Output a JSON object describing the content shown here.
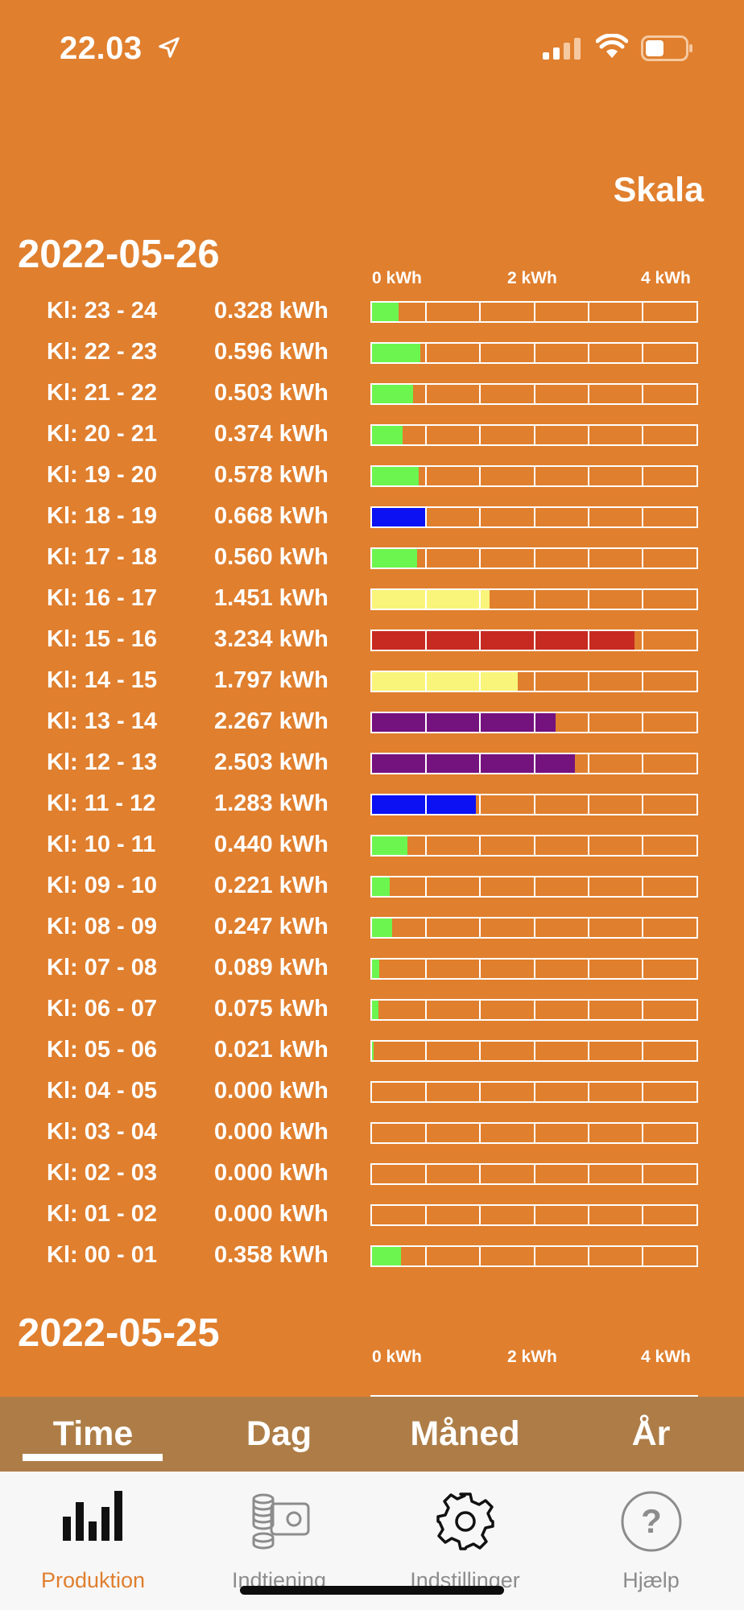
{
  "status": {
    "time": "22.03"
  },
  "header": {
    "scale_label": "Skala"
  },
  "days": [
    {
      "date": "2022-05-26",
      "axis": [
        "0 kWh",
        "2 kWh",
        "4 kWh"
      ],
      "rows": [
        {
          "label": "Kl: 23 - 24",
          "value": "0.328 kWh",
          "kwh": 0.328,
          "color": "#6cf54f"
        },
        {
          "label": "Kl: 22 - 23",
          "value": "0.596 kWh",
          "kwh": 0.596,
          "color": "#6cf54f"
        },
        {
          "label": "Kl: 21 - 22",
          "value": "0.503 kWh",
          "kwh": 0.503,
          "color": "#6cf54f"
        },
        {
          "label": "Kl: 20 - 21",
          "value": "0.374 kWh",
          "kwh": 0.374,
          "color": "#6cf54f"
        },
        {
          "label": "Kl: 19 - 20",
          "value": "0.578 kWh",
          "kwh": 0.578,
          "color": "#6cf54f"
        },
        {
          "label": "Kl: 18 - 19",
          "value": "0.668 kWh",
          "kwh": 0.668,
          "color": "#0b11f2"
        },
        {
          "label": "Kl: 17 - 18",
          "value": "0.560 kWh",
          "kwh": 0.56,
          "color": "#6cf54f"
        },
        {
          "label": "Kl: 16 - 17",
          "value": "1.451 kWh",
          "kwh": 1.451,
          "color": "#f8f57a"
        },
        {
          "label": "Kl: 15 - 16",
          "value": "3.234 kWh",
          "kwh": 3.234,
          "color": "#c72a21"
        },
        {
          "label": "Kl: 14 - 15",
          "value": "1.797 kWh",
          "kwh": 1.797,
          "color": "#f8f57a"
        },
        {
          "label": "Kl: 13 - 14",
          "value": "2.267 kWh",
          "kwh": 2.267,
          "color": "#74127e"
        },
        {
          "label": "Kl: 12 - 13",
          "value": "2.503 kWh",
          "kwh": 2.503,
          "color": "#74127e"
        },
        {
          "label": "Kl: 11 - 12",
          "value": "1.283 kWh",
          "kwh": 1.283,
          "color": "#0b11f2"
        },
        {
          "label": "Kl: 10 - 11",
          "value": "0.440 kWh",
          "kwh": 0.44,
          "color": "#6cf54f"
        },
        {
          "label": "Kl: 09 - 10",
          "value": "0.221 kWh",
          "kwh": 0.221,
          "color": "#6cf54f"
        },
        {
          "label": "Kl: 08 - 09",
          "value": "0.247 kWh",
          "kwh": 0.247,
          "color": "#6cf54f"
        },
        {
          "label": "Kl: 07 - 08",
          "value": "0.089 kWh",
          "kwh": 0.089,
          "color": "#6cf54f"
        },
        {
          "label": "Kl: 06 - 07",
          "value": "0.075 kWh",
          "kwh": 0.075,
          "color": "#6cf54f"
        },
        {
          "label": "Kl: 05 - 06",
          "value": "0.021 kWh",
          "kwh": 0.021,
          "color": "#6cf54f"
        },
        {
          "label": "Kl: 04 - 05",
          "value": "0.000 kWh",
          "kwh": 0.0,
          "color": "#6cf54f"
        },
        {
          "label": "Kl: 03 - 04",
          "value": "0.000 kWh",
          "kwh": 0.0,
          "color": "#6cf54f"
        },
        {
          "label": "Kl: 02 - 03",
          "value": "0.000 kWh",
          "kwh": 0.0,
          "color": "#6cf54f"
        },
        {
          "label": "Kl: 01 - 02",
          "value": "0.000 kWh",
          "kwh": 0.0,
          "color": "#6cf54f"
        },
        {
          "label": "Kl: 00 - 01",
          "value": "0.358 kWh",
          "kwh": 0.358,
          "color": "#6cf54f"
        }
      ]
    },
    {
      "date": "2022-05-25",
      "axis": [
        "0 kWh",
        "2 kWh",
        "4 kWh"
      ],
      "rows": []
    }
  ],
  "scale_max_kwh": 4,
  "period_tabs": [
    "Time",
    "Dag",
    "Måned",
    "År"
  ],
  "active_period": "Time",
  "tab_bar": [
    {
      "label": "Produktion",
      "icon": "bar-chart-icon",
      "active": true
    },
    {
      "label": "Indtjening",
      "icon": "coins-icon",
      "active": false
    },
    {
      "label": "Indstillinger",
      "icon": "gear-icon",
      "active": false
    },
    {
      "label": "Hjælp",
      "icon": "question-icon",
      "active": false
    }
  ],
  "colors": {
    "background": "#e07f2e",
    "tab_strip": "#ae7d47",
    "active_tab": "#e07f2e"
  }
}
